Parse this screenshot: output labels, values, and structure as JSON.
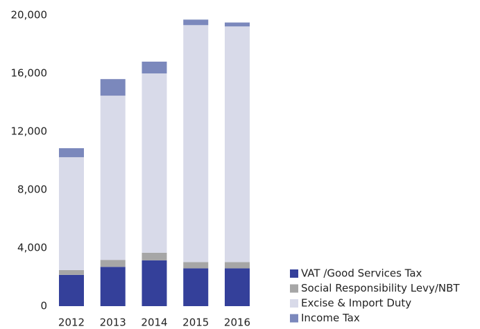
{
  "chart_data": {
    "type": "stacked_bar",
    "categories": [
      "2012",
      "2013",
      "2014",
      "2015",
      "2016"
    ],
    "series": [
      {
        "name": "VAT /Good Services Tax",
        "color": "#34409a",
        "values": [
          2150,
          2700,
          3150,
          2600,
          2600
        ]
      },
      {
        "name": "Social Responsibility Levy/NBT",
        "color": "#a6a6a6",
        "values": [
          330,
          480,
          520,
          430,
          430
        ]
      },
      {
        "name": "Excise & Import Duty",
        "color": "#d8dae9",
        "values": [
          7760,
          11290,
          12330,
          16290,
          16200
        ]
      },
      {
        "name": "Income Tax",
        "color": "#7b88bc",
        "values": [
          620,
          1140,
          810,
          380,
          270
        ]
      }
    ],
    "ylim": [
      0,
      20000
    ],
    "yticks": [
      0,
      {
        "value": 4000,
        "label": "4,000"
      },
      {
        "value": 8000,
        "label": "8,000"
      },
      {
        "value": 12000,
        "label": "12,000"
      },
      {
        "value": 16000,
        "label": "16,000"
      },
      {
        "value": 20000,
        "label": "20,000"
      }
    ],
    "legend": "bottom-right"
  }
}
